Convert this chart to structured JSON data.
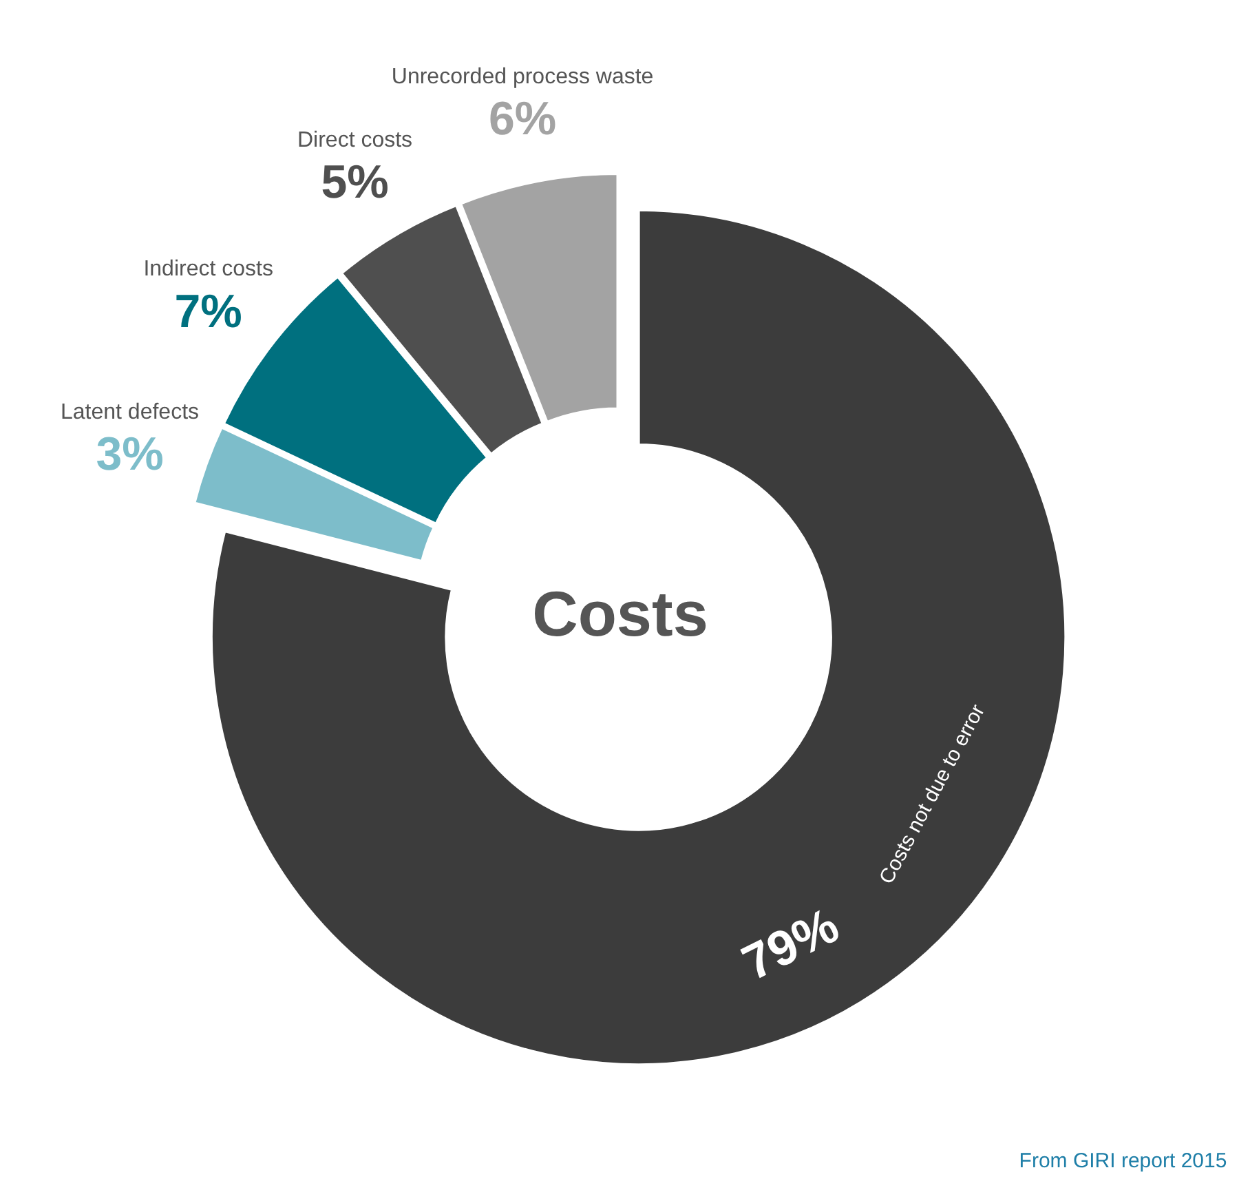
{
  "chart_data": {
    "type": "donut",
    "title": "Costs",
    "categories": [
      "Costs not due to error",
      "Latent defects",
      "Indirect costs",
      "Direct costs",
      "Unrecorded process waste"
    ],
    "values": [
      79,
      3,
      7,
      5,
      6
    ],
    "value_labels": [
      "79%",
      "3%",
      "7%",
      "5%",
      "6%"
    ],
    "colors": [
      "#3c3c3c",
      "#7dbdca",
      "#00707f",
      "#4f4f4f",
      "#a3a3a3"
    ],
    "annotations": [
      "From GIRI report 2015"
    ]
  }
}
